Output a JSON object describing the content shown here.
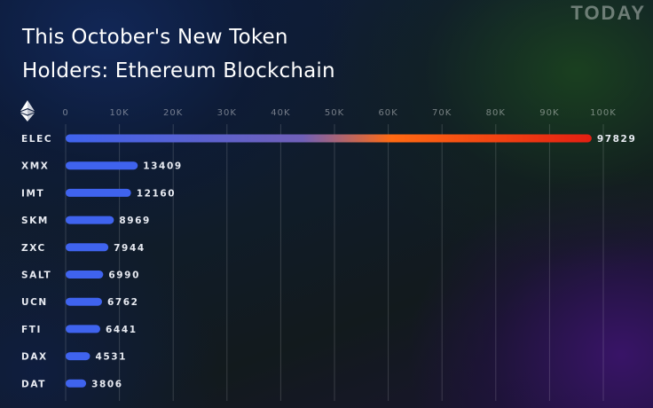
{
  "brand": "TODAY",
  "title_lines": [
    "This October's New Token",
    "Holders: Ethereum Blockchain"
  ],
  "colors": {
    "bar_main": "#3f63ee",
    "elec_gradient": [
      "#3f63ee",
      "#7060b8",
      "#ff6a13",
      "#e41f12"
    ]
  },
  "chart_data": {
    "type": "bar",
    "orientation": "horizontal",
    "title": "This October's New Token Holders: Ethereum Blockchain",
    "categories": [
      "ELEC",
      "XMX",
      "IMT",
      "SKM",
      "ZXC",
      "SALT",
      "UCN",
      "FTI",
      "DAX",
      "DAT"
    ],
    "values": [
      97829,
      13409,
      12160,
      8969,
      7944,
      6990,
      6762,
      6441,
      4531,
      3806
    ],
    "xlim": [
      0,
      100000
    ],
    "xticks": [
      0,
      10000,
      20000,
      30000,
      40000,
      50000,
      60000,
      70000,
      80000,
      90000,
      100000
    ],
    "xtick_labels": [
      "0",
      "10K",
      "20K",
      "30K",
      "40K",
      "50K",
      "60K",
      "70K",
      "80K",
      "90K",
      "100K"
    ],
    "data_labels": [
      "97829",
      "13409",
      "12160",
      "8969",
      "7944",
      "6990",
      "6762",
      "6441",
      "4531",
      "3806"
    ],
    "grid": true,
    "xlabel": "",
    "ylabel": ""
  }
}
